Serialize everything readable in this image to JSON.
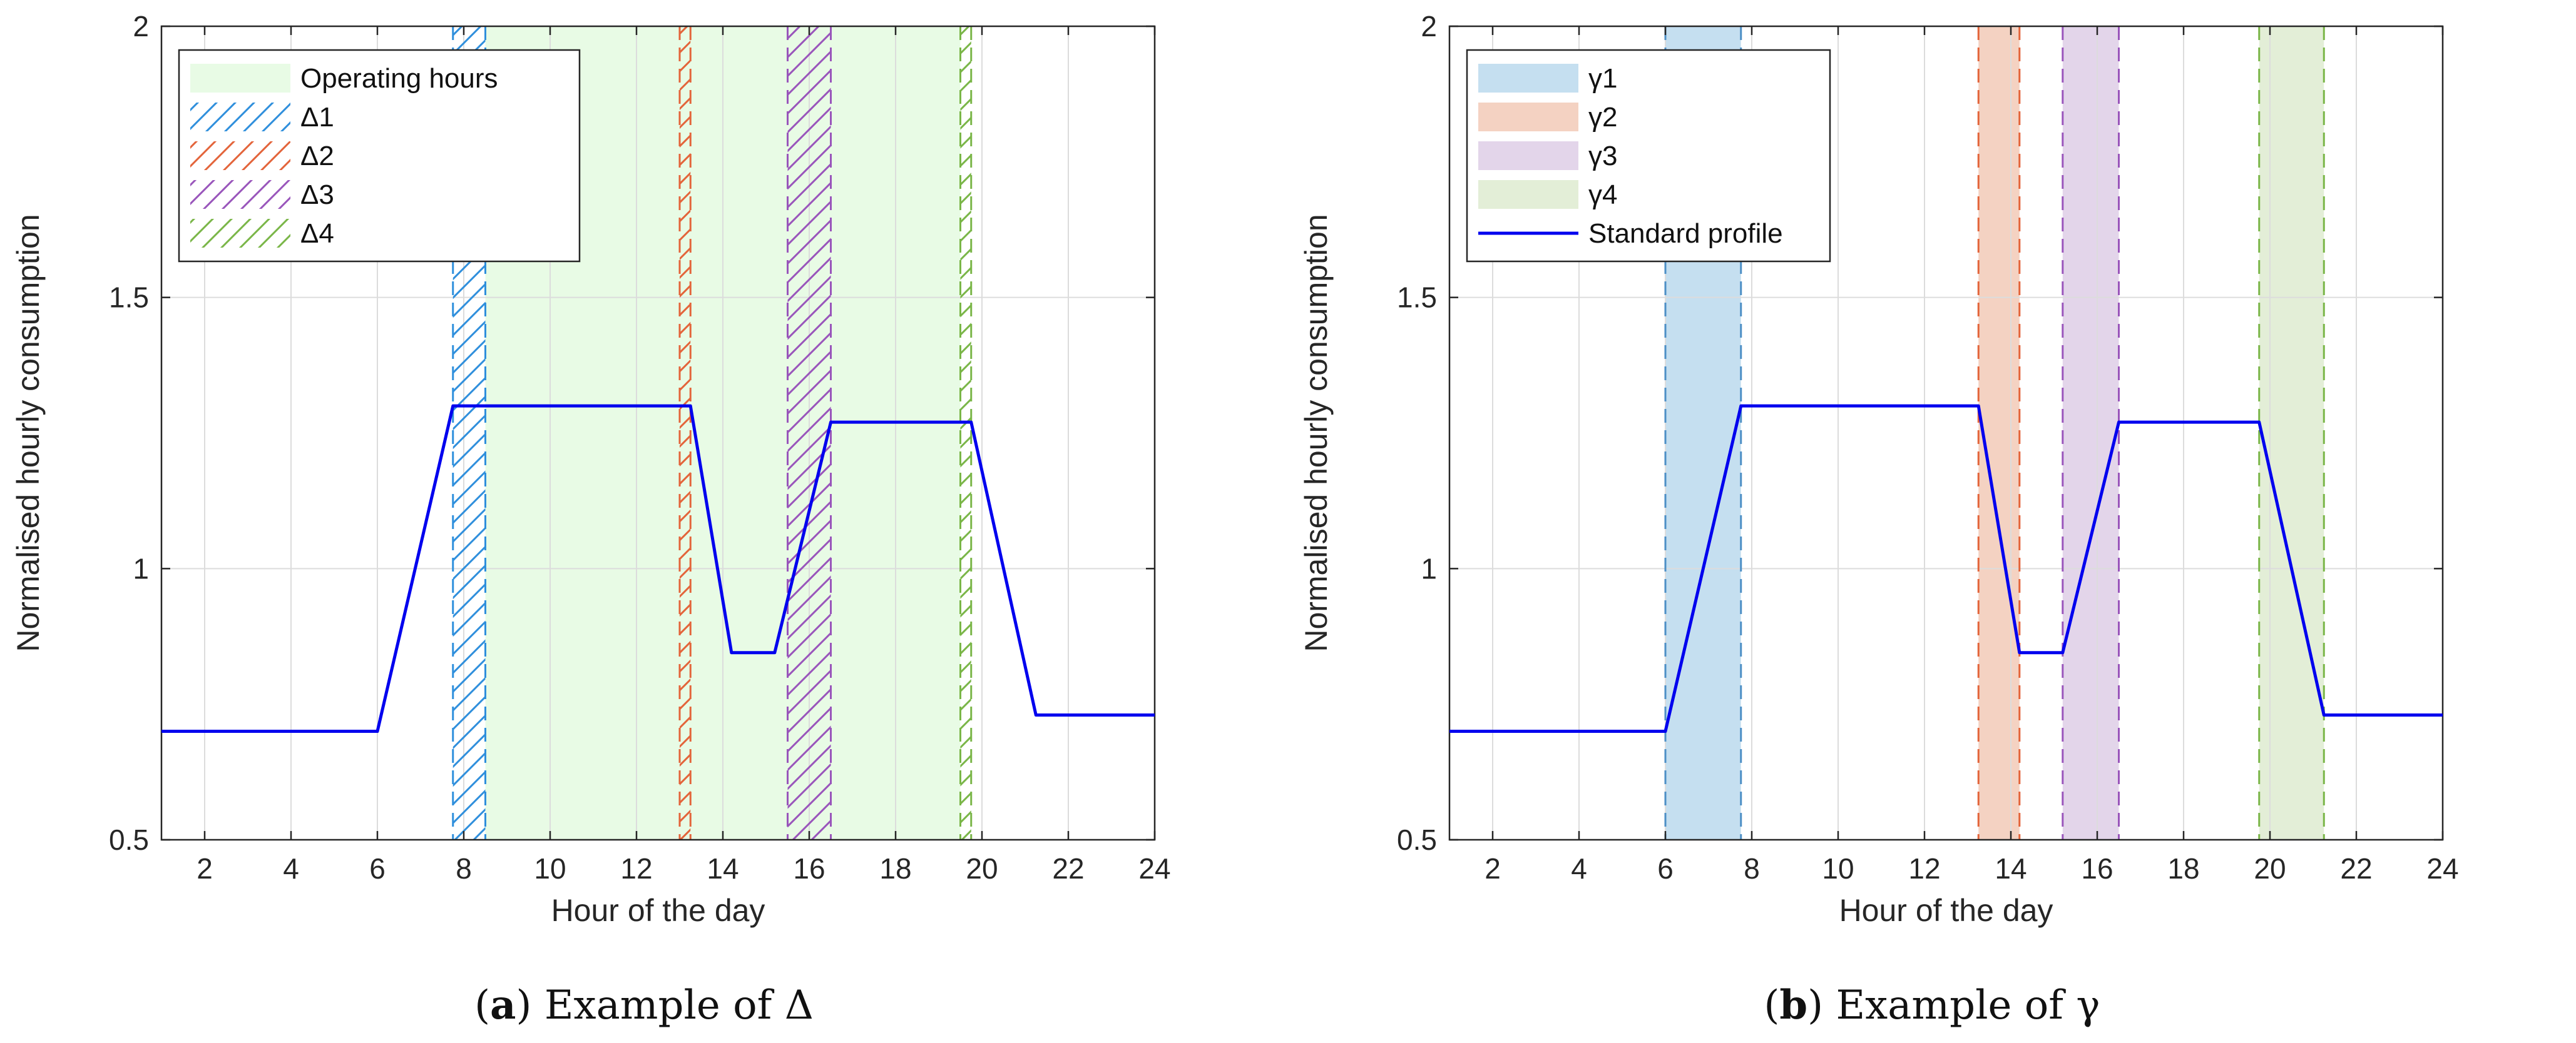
{
  "chart_data": [
    {
      "id": "a",
      "type": "line",
      "caption": {
        "tag": "a",
        "text": "Example of Δ"
      },
      "xlabel": "Hour of the day",
      "ylabel": "Normalised hourly consumption",
      "xlim": [
        1,
        24
      ],
      "ylim": [
        0.5,
        2
      ],
      "xticks": [
        2,
        4,
        6,
        8,
        10,
        12,
        14,
        16,
        18,
        20,
        22,
        24
      ],
      "yticks": [
        0.5,
        1,
        1.5,
        2
      ],
      "ytick_labels": [
        "0.5",
        "1",
        "1.5",
        "2"
      ],
      "grid": true,
      "legend_position": "top-left",
      "series": [
        {
          "name": "Standard profile",
          "color": "#0000ee",
          "show_in_legend": false,
          "x": [
            1,
            6,
            7.75,
            13.25,
            14.2,
            15.2,
            16.5,
            19.75,
            21.25,
            24
          ],
          "y": [
            0.7,
            0.7,
            1.3,
            1.3,
            0.845,
            0.845,
            1.27,
            1.27,
            0.73,
            0.73
          ]
        }
      ],
      "bands": [
        {
          "label": "Operating hours",
          "start": 8.5,
          "end": 19.5,
          "color": "#e8fbe5",
          "style": "fill",
          "edge": "none"
        },
        {
          "label": "Δ1",
          "start": 7.75,
          "end": 8.5,
          "color": "#2f8fdc",
          "style": "hatch",
          "edge": "dashed"
        },
        {
          "label": "Δ2",
          "start": 13.0,
          "end": 13.25,
          "color": "#e3643a",
          "style": "hatch",
          "edge": "dashed"
        },
        {
          "label": "Δ3",
          "start": 15.5,
          "end": 16.5,
          "color": "#9955bb",
          "style": "hatch",
          "edge": "dashed"
        },
        {
          "label": "Δ4",
          "start": 19.5,
          "end": 19.75,
          "color": "#7ab648",
          "style": "hatch",
          "edge": "dashed"
        }
      ]
    },
    {
      "id": "b",
      "type": "line",
      "caption": {
        "tag": "b",
        "text": "Example of γ"
      },
      "xlabel": "Hour of the day",
      "ylabel": "Normalised hourly consumption",
      "xlim": [
        1,
        24
      ],
      "ylim": [
        0.5,
        2
      ],
      "xticks": [
        2,
        4,
        6,
        8,
        10,
        12,
        14,
        16,
        18,
        20,
        22,
        24
      ],
      "yticks": [
        0.5,
        1,
        1.5,
        2
      ],
      "ytick_labels": [
        "0.5",
        "1",
        "1.5",
        "2"
      ],
      "grid": true,
      "legend_position": "top-left",
      "series": [
        {
          "name": "Standard profile",
          "color": "#0000ee",
          "show_in_legend": true,
          "x": [
            1,
            6,
            7.75,
            13.25,
            14.2,
            15.2,
            16.5,
            19.75,
            21.25,
            24
          ],
          "y": [
            0.7,
            0.7,
            1.3,
            1.3,
            0.845,
            0.845,
            1.27,
            1.27,
            0.73,
            0.73
          ]
        }
      ],
      "bands": [
        {
          "label": "γ1",
          "start": 6.0,
          "end": 7.75,
          "color": "#c5dff0",
          "style": "fill",
          "edge": "dashed",
          "edge_color": "#4d8fc6"
        },
        {
          "label": "γ2",
          "start": 13.25,
          "end": 14.2,
          "color": "#f4d2c2",
          "style": "fill",
          "edge": "dashed",
          "edge_color": "#e3643a"
        },
        {
          "label": "γ3",
          "start": 15.2,
          "end": 16.5,
          "color": "#e3d5ea",
          "style": "fill",
          "edge": "dashed",
          "edge_color": "#9955bb"
        },
        {
          "label": "γ4",
          "start": 19.75,
          "end": 21.25,
          "color": "#e3eed7",
          "style": "fill",
          "edge": "dashed",
          "edge_color": "#7ab648"
        }
      ]
    }
  ]
}
